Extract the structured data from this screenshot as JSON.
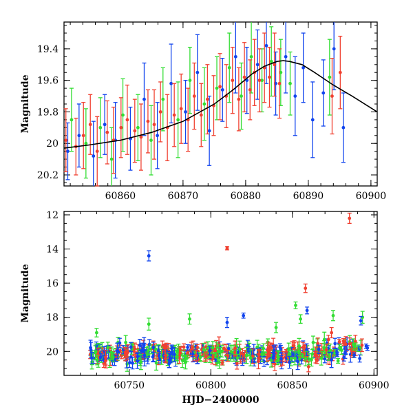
{
  "chart_data": [
    {
      "type": "scatter",
      "title": "",
      "xlabel": "",
      "ylabel": "Magnitude",
      "xlim": [
        60851,
        60901
      ],
      "ylim": [
        20.27,
        19.23
      ],
      "y_inverted": true,
      "grid": false,
      "legend": "none",
      "x_ticks": [
        60860,
        60870,
        60880,
        60890,
        60900
      ],
      "x_tick_labels": [
        "60860",
        "60870",
        "60880",
        "60890",
        "60900"
      ],
      "y_ticks": [
        19.4,
        19.6,
        19.8,
        20,
        20.2
      ],
      "y_tick_labels": [
        "19.4",
        "19.6",
        "19.8",
        "20",
        "20.2"
      ],
      "series": [
        {
          "color": "#1144ee",
          "x": [
            60851.6,
            60853.4,
            60855.7,
            60857.5,
            60859.2,
            60861.6,
            60863.8,
            60865.9,
            60868.1,
            60870.4,
            60872.3,
            60874.2,
            60876.3,
            60878.4,
            60880.2,
            60881.9,
            60883.3,
            60884.8,
            60886.4,
            60887.9,
            60889.2,
            60890.7,
            60892.4,
            60894.1,
            60895.6
          ],
          "y": [
            20.05,
            19.95,
            20.08,
            19.88,
            19.98,
            19.97,
            19.72,
            19.95,
            19.62,
            19.8,
            19.55,
            19.92,
            19.66,
            19.45,
            19.6,
            19.5,
            19.38,
            19.62,
            19.45,
            19.7,
            19.52,
            19.85,
            19.68,
            19.4,
            19.9
          ],
          "yerr": [
            0.18,
            0.2,
            0.22,
            0.19,
            0.24,
            0.2,
            0.23,
            0.21,
            0.25,
            0.2,
            0.24,
            0.22,
            0.2,
            0.23,
            0.21,
            0.22,
            0.24,
            0.2,
            0.23,
            0.25,
            0.22,
            0.24,
            0.21,
            0.26,
            0.22
          ]
        },
        {
          "color": "#33dd33",
          "x": [
            60852.2,
            60854.5,
            60856.8,
            60858.6,
            60860.4,
            60862.8,
            60864.9,
            60866.8,
            60869.2,
            60871.1,
            60873.4,
            60875.4,
            60877.4,
            60879.3,
            60880.9,
            60882.6,
            60884.1,
            60885.6,
            60887.1,
            60893.4
          ],
          "y": [
            19.85,
            20.0,
            19.9,
            20.1,
            19.82,
            19.9,
            19.98,
            19.72,
            19.85,
            19.6,
            19.75,
            19.65,
            19.52,
            19.7,
            19.45,
            19.6,
            19.48,
            19.55,
            19.62,
            19.58
          ],
          "yerr": [
            0.2,
            0.22,
            0.19,
            0.2,
            0.23,
            0.21,
            0.22,
            0.2,
            0.24,
            0.21,
            0.23,
            0.2,
            0.22,
            0.21,
            0.23,
            0.2,
            0.22,
            0.21,
            0.2,
            0.24
          ]
        },
        {
          "color": "#f04030",
          "x": [
            60851.3,
            60852.9,
            60854.1,
            60855.2,
            60856.3,
            60857.9,
            60858.9,
            60860.1,
            60861.1,
            60862.3,
            60863.3,
            60864.4,
            60865.4,
            60866.4,
            60867.5,
            60868.6,
            60869.7,
            60870.8,
            60871.8,
            60872.9,
            60873.9,
            60874.9,
            60875.9,
            60876.9,
            60877.9,
            60878.9,
            60879.8,
            60880.7,
            60881.4,
            60882.2,
            60883.0,
            60883.8,
            60884.6,
            60885.4,
            60893.8,
            60895.1
          ],
          "y": [
            19.98,
            20.02,
            19.95,
            19.88,
            20.05,
            19.93,
            19.98,
            19.9,
            19.85,
            19.92,
            19.96,
            19.86,
            19.88,
            19.8,
            19.9,
            19.82,
            19.78,
            19.85,
            19.7,
            19.82,
            19.72,
            19.76,
            19.64,
            19.7,
            19.6,
            19.72,
            19.58,
            19.66,
            19.55,
            19.6,
            19.52,
            19.58,
            19.5,
            19.62,
            19.7,
            19.55
          ],
          "yerr": [
            0.2,
            0.18,
            0.21,
            0.19,
            0.22,
            0.2,
            0.21,
            0.19,
            0.22,
            0.2,
            0.21,
            0.2,
            0.22,
            0.19,
            0.21,
            0.2,
            0.22,
            0.2,
            0.21,
            0.2,
            0.22,
            0.19,
            0.21,
            0.2,
            0.21,
            0.2,
            0.22,
            0.19,
            0.21,
            0.2,
            0.22,
            0.19,
            0.2,
            0.22,
            0.24,
            0.23
          ]
        }
      ],
      "model_curve": {
        "color": "#000000",
        "x": [
          60851,
          60855,
          60860,
          60865,
          60870,
          60875,
          60878,
          60881,
          60883,
          60885,
          60886,
          60887,
          60889,
          60891,
          60894,
          60897,
          60901
        ],
        "y": [
          20.03,
          20.01,
          19.98,
          19.93,
          19.86,
          19.75,
          19.66,
          19.56,
          19.51,
          19.48,
          19.475,
          19.48,
          19.5,
          19.55,
          19.63,
          19.7,
          19.8
        ]
      }
    },
    {
      "type": "scatter",
      "title": "",
      "xlabel": "HJD−2400000",
      "ylabel": "Magnitude",
      "xlim": [
        60710,
        60902
      ],
      "ylim": [
        21.4,
        11.8
      ],
      "y_inverted": true,
      "grid": false,
      "legend": "none",
      "x_ticks": [
        60750,
        60800,
        60850,
        60900
      ],
      "x_tick_labels": [
        "60750",
        "60800",
        "60850",
        "60900"
      ],
      "y_ticks": [
        12,
        14,
        16,
        18,
        20
      ],
      "y_tick_labels": [
        "12",
        "14",
        "16",
        "18",
        "20"
      ],
      "outliers": [
        {
          "color": "#1144ee",
          "x": 60762,
          "y": 14.4,
          "yerr": 0.3
        },
        {
          "color": "#f04030",
          "x": 60810,
          "y": 13.95,
          "yerr": 0.1
        },
        {
          "color": "#f04030",
          "x": 60885,
          "y": 12.2,
          "yerr": 0.3
        },
        {
          "color": "#f04030",
          "x": 60858,
          "y": 16.3,
          "yerr": 0.25
        },
        {
          "color": "#1144ee",
          "x": 60859,
          "y": 17.6,
          "yerr": 0.2
        },
        {
          "color": "#33dd33",
          "x": 60762,
          "y": 18.4,
          "yerr": 0.35
        },
        {
          "color": "#33dd33",
          "x": 60852,
          "y": 17.3,
          "yerr": 0.2
        },
        {
          "color": "#33dd33",
          "x": 60855,
          "y": 18.1,
          "yerr": 0.25
        },
        {
          "color": "#33dd33",
          "x": 60875,
          "y": 17.9,
          "yerr": 0.3
        },
        {
          "color": "#33dd33",
          "x": 60893,
          "y": 18.0,
          "yerr": 0.35
        },
        {
          "color": "#1144ee",
          "x": 60820,
          "y": 17.9,
          "yerr": 0.15
        },
        {
          "color": "#33dd33",
          "x": 60730,
          "y": 18.9,
          "yerr": 0.25
        },
        {
          "color": "#33dd33",
          "x": 60787,
          "y": 18.1,
          "yerr": 0.3
        },
        {
          "color": "#1144ee",
          "x": 60810,
          "y": 18.3,
          "yerr": 0.3
        },
        {
          "color": "#33dd33",
          "x": 60840,
          "y": 18.6,
          "yerr": 0.3
        },
        {
          "color": "#1144ee",
          "x": 60892,
          "y": 18.2,
          "yerr": 0.25
        },
        {
          "color": "#f04030",
          "x": 60874,
          "y": 18.9,
          "yerr": 0.3
        }
      ],
      "bulk": {
        "x_range": [
          60726,
          60896
        ],
        "y_center": 20.15,
        "y_spread": 0.55,
        "colors": [
          "#33dd33",
          "#1144ee",
          "#f04030"
        ]
      }
    }
  ]
}
